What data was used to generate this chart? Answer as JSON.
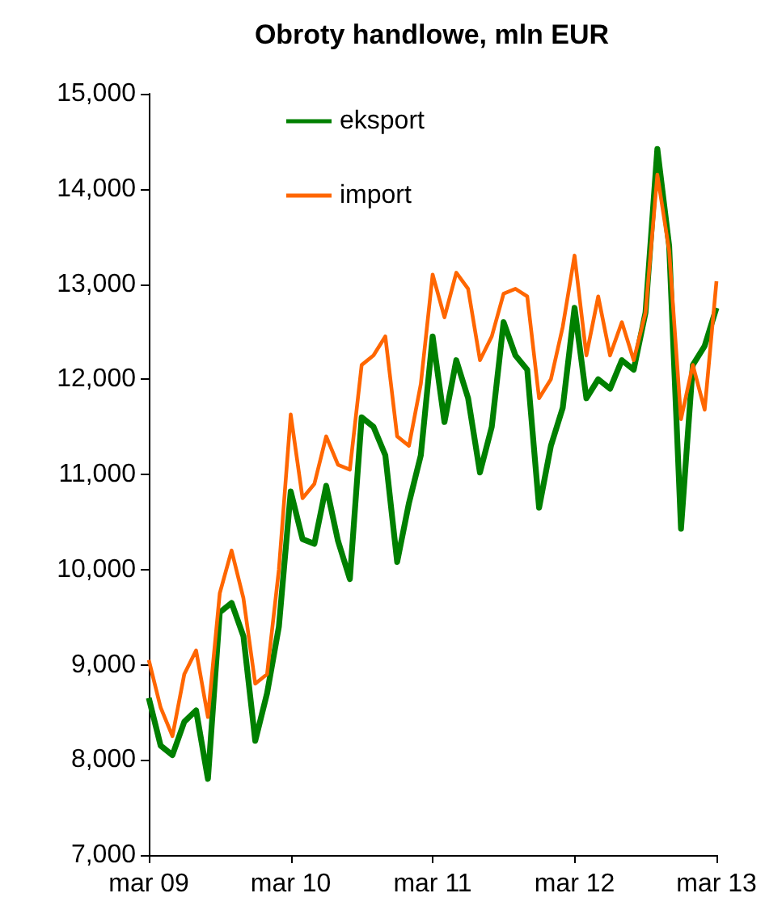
{
  "chart_data": {
    "type": "line",
    "title": "Obroty handlowe, mln EUR",
    "categories": [
      "mar 09",
      null,
      null,
      null,
      null,
      null,
      null,
      null,
      null,
      null,
      null,
      null,
      "mar 10",
      null,
      null,
      null,
      null,
      null,
      null,
      null,
      null,
      null,
      null,
      null,
      "mar 11",
      null,
      null,
      null,
      null,
      null,
      null,
      null,
      null,
      null,
      null,
      null,
      "mar 12",
      null,
      null,
      null,
      null,
      null,
      null,
      null,
      null,
      null,
      null,
      null,
      "mar 13"
    ],
    "series": [
      {
        "name": "eksport",
        "color": "#008000",
        "values": [
          8650,
          8150,
          8050,
          8400,
          8520,
          7800,
          9550,
          9650,
          9300,
          8200,
          8700,
          9400,
          10820,
          10320,
          10270,
          10880,
          10300,
          9900,
          11600,
          11500,
          11200,
          10080,
          10700,
          11200,
          12450,
          11550,
          12200,
          11800,
          11020,
          11500,
          12600,
          12250,
          12100,
          10650,
          11300,
          11700,
          12750,
          11800,
          12000,
          11900,
          12200,
          12100,
          12700,
          14420,
          13400,
          10430,
          12150,
          12350,
          12750
        ]
      },
      {
        "name": "import",
        "color": "#ff6600",
        "values": [
          9050,
          8550,
          8250,
          8900,
          9150,
          8450,
          9750,
          10200,
          9700,
          8800,
          8900,
          10000,
          11630,
          10750,
          10900,
          11400,
          11100,
          11050,
          12150,
          12250,
          12450,
          11400,
          11300,
          11950,
          13100,
          12650,
          13120,
          12950,
          12200,
          12450,
          12900,
          12950,
          12870,
          11800,
          12000,
          12550,
          13300,
          12250,
          12870,
          12250,
          12600,
          12200,
          12700,
          14150,
          13350,
          11580,
          12150,
          11680,
          13030
        ]
      }
    ],
    "ylim": [
      7000,
      15000
    ],
    "yticks": [
      {
        "value": 7000,
        "label": "7,000"
      },
      {
        "value": 8000,
        "label": "8,000"
      },
      {
        "value": 9000,
        "label": "9,000"
      },
      {
        "value": 10000,
        "label": "10,000"
      },
      {
        "value": 11000,
        "label": "11,000"
      },
      {
        "value": 12000,
        "label": "12,000"
      },
      {
        "value": 13000,
        "label": "13,000"
      },
      {
        "value": 14000,
        "label": "14,000"
      },
      {
        "value": 15000,
        "label": "15,000"
      }
    ],
    "grid": false,
    "legend": "top left",
    "marker": "none",
    "line_style": "solid"
  }
}
